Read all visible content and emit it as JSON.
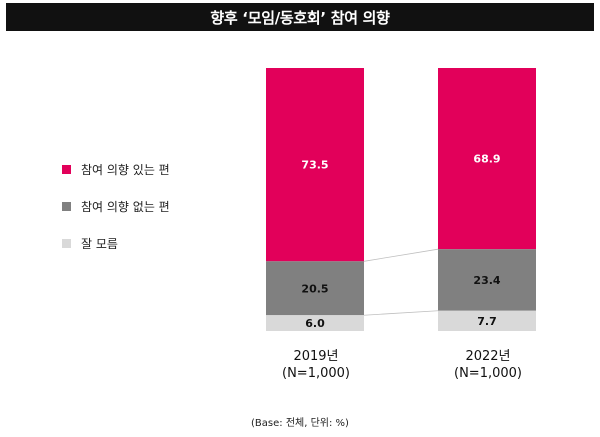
{
  "title": "향후 ‘모임/동호회’ 참여 의향",
  "footnote": "(Base: 전체, 단위: %)",
  "colors": {
    "participate": "#e2005a",
    "not_participate": "#808080",
    "dont_know": "#d9d9d9",
    "title_bg": "#111111"
  },
  "chart_data": {
    "type": "bar",
    "stacked": true,
    "categories": [
      "2019년",
      "2022년"
    ],
    "category_notes": [
      "(N=1,000)",
      "(N=1,000)"
    ],
    "series": [
      {
        "name": "참여 의향 있는 편",
        "values": [
          73.5,
          68.9
        ]
      },
      {
        "name": "참여 의향 없는 편",
        "values": [
          20.5,
          23.4
        ]
      },
      {
        "name": "잘 모름",
        "values": [
          6.0,
          7.7
        ]
      }
    ],
    "value_labels": [
      [
        "73.5",
        "68.9"
      ],
      [
        "20.5",
        "23.4"
      ],
      [
        "6.0",
        "7.7"
      ]
    ],
    "ylim": [
      0,
      100
    ],
    "legend_position": "left",
    "grid": false
  }
}
